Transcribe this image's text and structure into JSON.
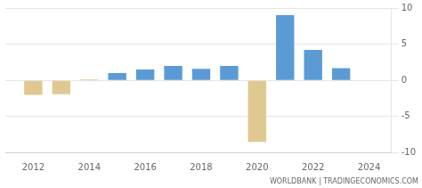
{
  "chart_data": {
    "type": "bar",
    "x": [
      2012,
      2013,
      2014,
      2015,
      2016,
      2017,
      2018,
      2019,
      2020,
      2021,
      2022,
      2023
    ],
    "values": [
      -2.0,
      -1.9,
      0.15,
      1.0,
      1.5,
      2.0,
      1.6,
      2.0,
      -8.5,
      9.0,
      4.2,
      1.7
    ],
    "colors": [
      "#dfc990",
      "#dfc990",
      "#dfc990",
      "#5b9bd5",
      "#5b9bd5",
      "#5b9bd5",
      "#5b9bd5",
      "#5b9bd5",
      "#dfc990",
      "#5b9bd5",
      "#5b9bd5",
      "#5b9bd5"
    ],
    "xlim": [
      2011.0,
      2024.8
    ],
    "xticks": [
      2012,
      2014,
      2016,
      2018,
      2020,
      2022,
      2024
    ],
    "ylim": [
      -10,
      10
    ],
    "yticks": [
      -10,
      -5,
      0,
      5,
      10
    ],
    "grid": true,
    "annotations": [
      "WORLDBANK | TRADINGECONOMICS.COM"
    ]
  }
}
